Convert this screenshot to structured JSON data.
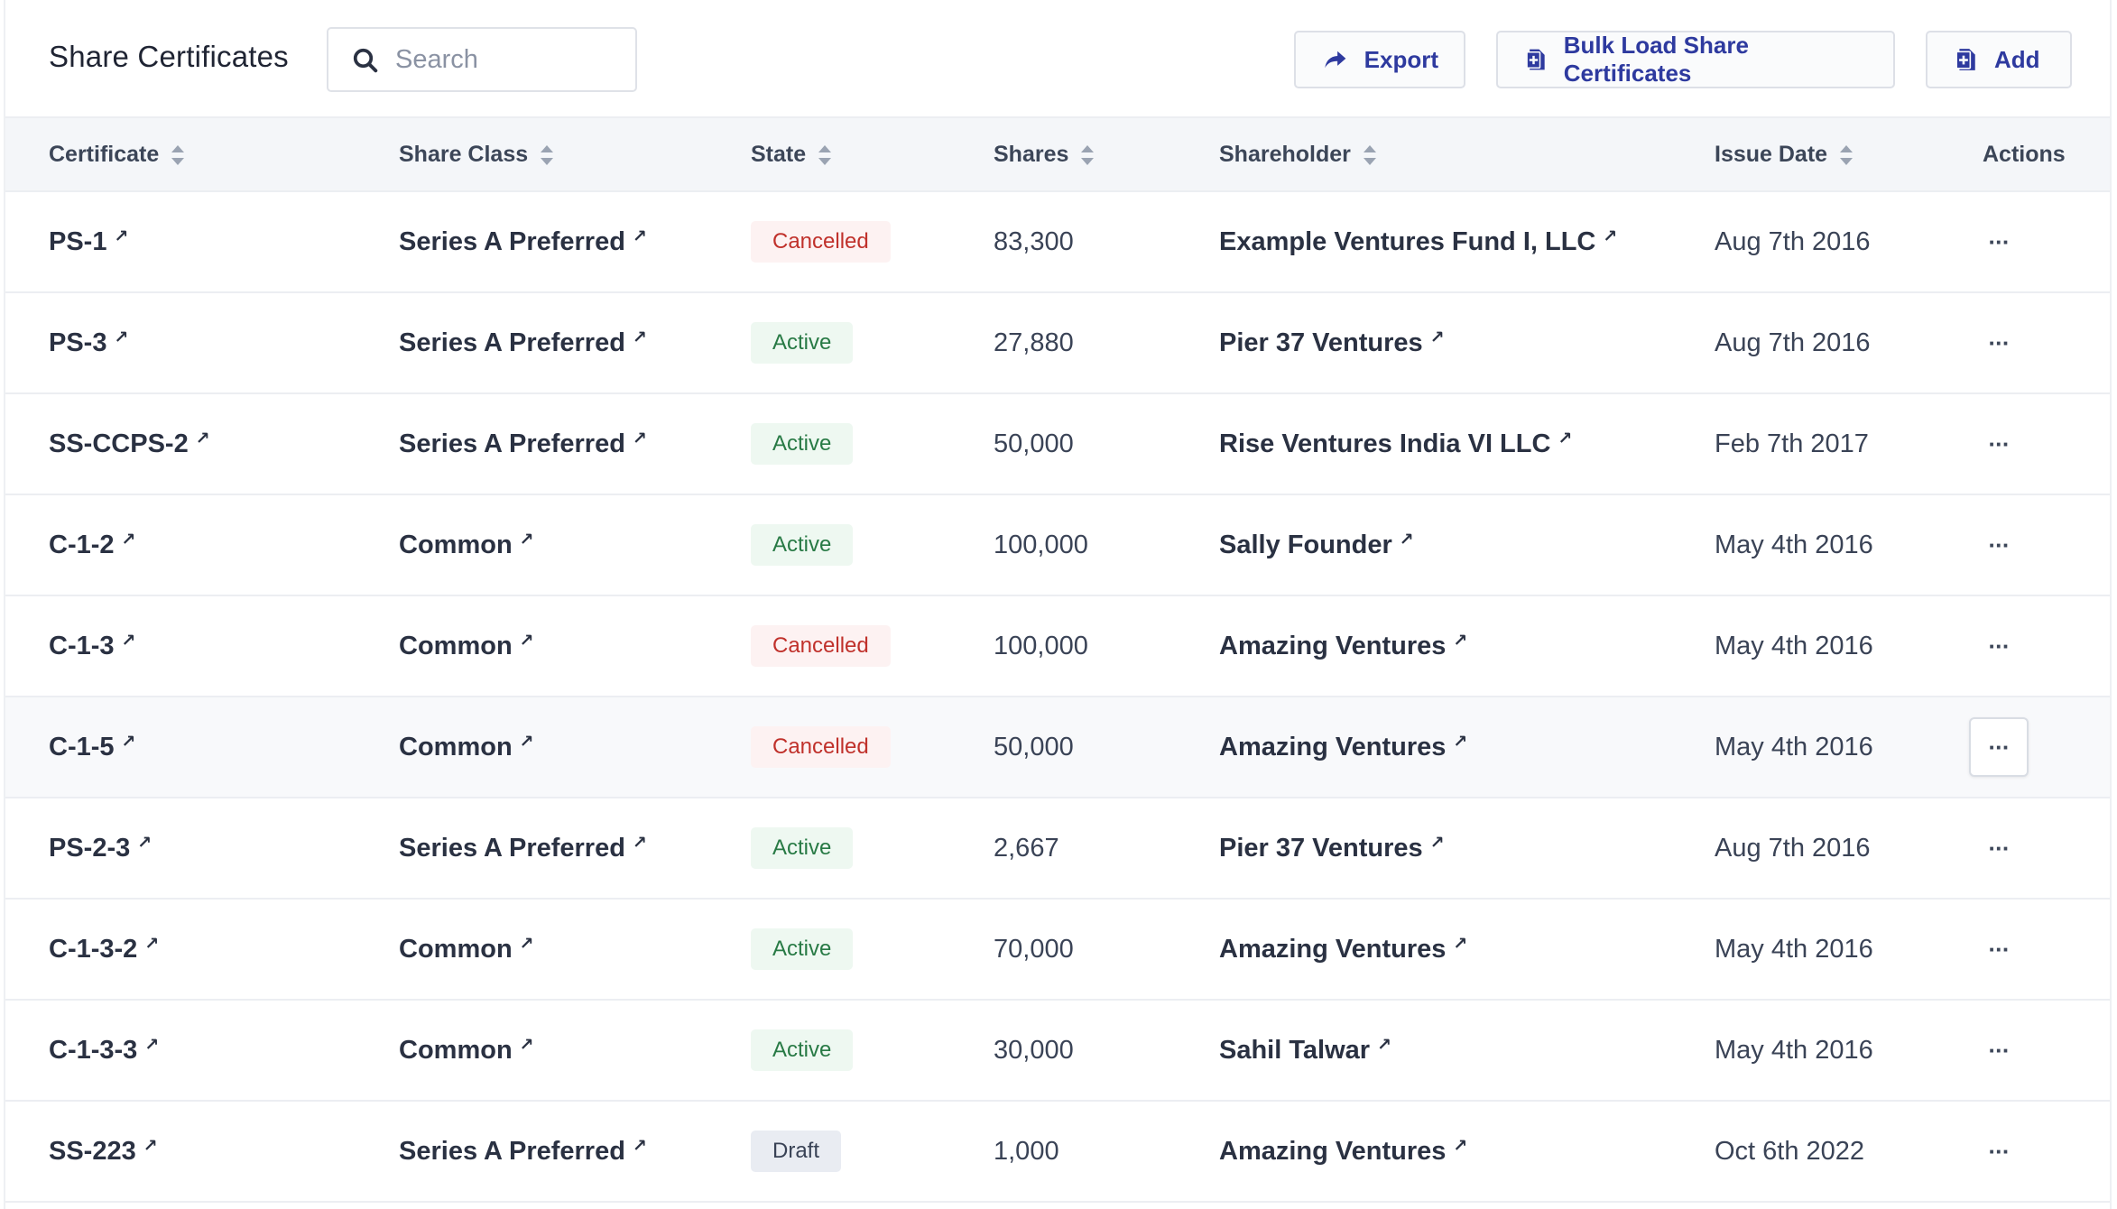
{
  "header": {
    "title": "Share Certificates",
    "search_placeholder": "Search",
    "export_label": "Export",
    "bulk_label": "Bulk Load Share Certificates",
    "add_label": "Add",
    "accent_color": "#2e3a9f"
  },
  "columns": {
    "certificate": "Certificate",
    "share_class": "Share Class",
    "state": "State",
    "shares": "Shares",
    "shareholder": "Shareholder",
    "issue_date": "Issue Date",
    "actions": "Actions"
  },
  "rows": [
    {
      "certificate": "PS-1",
      "share_class": "Series A Preferred",
      "state": "Cancelled",
      "shares": "83,300",
      "shareholder": "Example Ventures Fund I, LLC",
      "issue_date": "Aug 7th 2016",
      "actions": "···"
    },
    {
      "certificate": "PS-3",
      "share_class": "Series A Preferred",
      "state": "Active",
      "shares": "27,880",
      "shareholder": "Pier 37 Ventures",
      "issue_date": "Aug 7th 2016",
      "actions": "···"
    },
    {
      "certificate": "SS-CCPS-2",
      "share_class": "Series A Preferred",
      "state": "Active",
      "shares": "50,000",
      "shareholder": "Rise Ventures India VI LLC",
      "issue_date": "Feb 7th 2017",
      "actions": "···"
    },
    {
      "certificate": "C-1-2",
      "share_class": "Common",
      "state": "Active",
      "shares": "100,000",
      "shareholder": "Sally Founder",
      "issue_date": "May 4th 2016",
      "actions": "···"
    },
    {
      "certificate": "C-1-3",
      "share_class": "Common",
      "state": "Cancelled",
      "shares": "100,000",
      "shareholder": "Amazing Ventures",
      "issue_date": "May 4th 2016",
      "actions": "···"
    },
    {
      "certificate": "C-1-5",
      "share_class": "Common",
      "state": "Cancelled",
      "shares": "50,000",
      "shareholder": "Amazing Ventures",
      "issue_date": "May 4th 2016",
      "actions": "···"
    },
    {
      "certificate": "PS-2-3",
      "share_class": "Series A Preferred",
      "state": "Active",
      "shares": "2,667",
      "shareholder": "Pier 37 Ventures",
      "issue_date": "Aug 7th 2016",
      "actions": "···"
    },
    {
      "certificate": "C-1-3-2",
      "share_class": "Common",
      "state": "Active",
      "shares": "70,000",
      "shareholder": "Amazing Ventures",
      "issue_date": "May 4th 2016",
      "actions": "···"
    },
    {
      "certificate": "C-1-3-3",
      "share_class": "Common",
      "state": "Active",
      "shares": "30,000",
      "shareholder": "Sahil Talwar",
      "issue_date": "May 4th 2016",
      "actions": "···"
    },
    {
      "certificate": "SS-223",
      "share_class": "Series A Preferred",
      "state": "Draft",
      "shares": "1,000",
      "shareholder": "Amazing Ventures",
      "issue_date": "Oct 6th 2022",
      "actions": "···"
    }
  ],
  "icons": {
    "search": "search-icon",
    "export": "share-arrow-icon",
    "bulk": "document-plus-icon",
    "add": "document-plus-icon",
    "external_link": "arrow-up-right-icon",
    "sort": "sort-arrows-icon",
    "actions": "more-horizontal-icon"
  }
}
